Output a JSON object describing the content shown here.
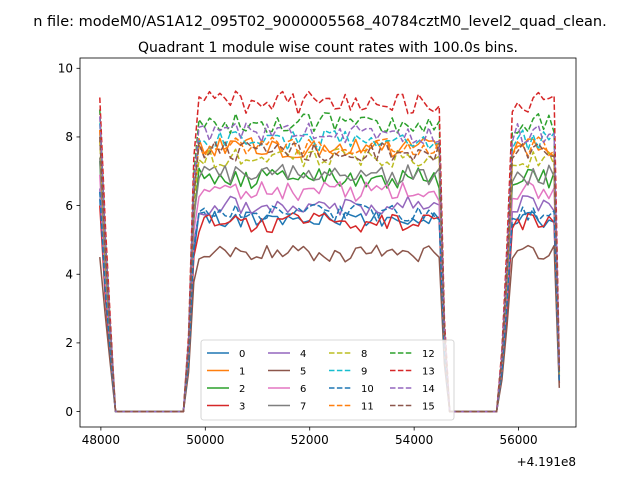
{
  "chart_data": {
    "type": "line",
    "suptitle": "n file: modeM0/AS1A12_095T02_9000005568_40784cztM0_level2_quad_clean.",
    "title": "Quadrant 1 module wise count rates with 100.0s bins.",
    "xlabel": "",
    "ylabel": "",
    "x_offset_text": "+4.191e8",
    "xlim": [
      47600,
      57100
    ],
    "ylim": [
      -0.45,
      10.3
    ],
    "x_ticks": [
      48000,
      50000,
      52000,
      54000,
      56000
    ],
    "x_tick_labels": [
      "48000",
      "50000",
      "52000",
      "54000",
      "56000"
    ],
    "y_ticks": [
      0,
      2,
      4,
      6,
      8,
      10
    ],
    "y_tick_labels": [
      "0",
      "2",
      "4",
      "6",
      "8",
      "10"
    ],
    "grid": false,
    "legend_position": "lower center",
    "x_schedule": {
      "start": 47980,
      "step": 100,
      "segments": [
        {
          "kind": "edge",
          "values": [
            1.0,
            0.62,
            0.3
          ]
        },
        {
          "kind": "zero",
          "count": 14
        },
        {
          "kind": "edge",
          "values": [
            0.25,
            0.82
          ]
        },
        {
          "kind": "plateau",
          "count": 47
        },
        {
          "kind": "edge",
          "values": [
            0.3
          ]
        },
        {
          "kind": "zero",
          "count": 10
        },
        {
          "kind": "edge",
          "values": [
            0.2,
            0.55,
            0.97
          ]
        },
        {
          "kind": "plateau",
          "count": 8
        },
        {
          "kind": "edge",
          "values": [
            0.15
          ]
        }
      ]
    },
    "series": [
      {
        "name": "0",
        "color": "#1f77b4",
        "dash": "solid",
        "level": 5.6,
        "start": 6.2,
        "noise": 0.25
      },
      {
        "name": "1",
        "color": "#ff7f0e",
        "dash": "solid",
        "level": 7.7,
        "start": 8.2,
        "noise": 0.3
      },
      {
        "name": "2",
        "color": "#2ca02c",
        "dash": "solid",
        "level": 6.8,
        "start": 7.3,
        "noise": 0.3
      },
      {
        "name": "3",
        "color": "#d62728",
        "dash": "solid",
        "level": 5.5,
        "start": 6.0,
        "noise": 0.3
      },
      {
        "name": "4",
        "color": "#9467bd",
        "dash": "solid",
        "level": 6.0,
        "start": 6.5,
        "noise": 0.3
      },
      {
        "name": "5",
        "color": "#8c564b",
        "dash": "solid",
        "level": 4.6,
        "start": 4.5,
        "noise": 0.25
      },
      {
        "name": "6",
        "color": "#e377c2",
        "dash": "solid",
        "level": 6.4,
        "start": 6.9,
        "noise": 0.3
      },
      {
        "name": "7",
        "color": "#7f7f7f",
        "dash": "solid",
        "level": 6.9,
        "start": 7.4,
        "noise": 0.3
      },
      {
        "name": "8",
        "color": "#bcbd22",
        "dash": "dashed",
        "level": 7.4,
        "start": 7.9,
        "noise": 0.3
      },
      {
        "name": "9",
        "color": "#17becf",
        "dash": "dashed",
        "level": 7.9,
        "start": 8.4,
        "noise": 0.3
      },
      {
        "name": "10",
        "color": "#1f77b4",
        "dash": "dashed",
        "level": 5.8,
        "start": 6.4,
        "noise": 0.25
      },
      {
        "name": "11",
        "color": "#ff7f0e",
        "dash": "dashed",
        "level": 7.7,
        "start": 8.2,
        "noise": 0.3
      },
      {
        "name": "12",
        "color": "#2ca02c",
        "dash": "dashed",
        "level": 8.4,
        "start": 8.8,
        "noise": 0.3
      },
      {
        "name": "13",
        "color": "#d62728",
        "dash": "dashed",
        "level": 9.0,
        "start": 9.15,
        "noise": 0.35
      },
      {
        "name": "14",
        "color": "#9467bd",
        "dash": "dashed",
        "level": 8.1,
        "start": 8.6,
        "noise": 0.3
      },
      {
        "name": "15",
        "color": "#8c564b",
        "dash": "dashed",
        "level": 7.6,
        "start": 8.0,
        "noise": 0.3
      }
    ]
  }
}
